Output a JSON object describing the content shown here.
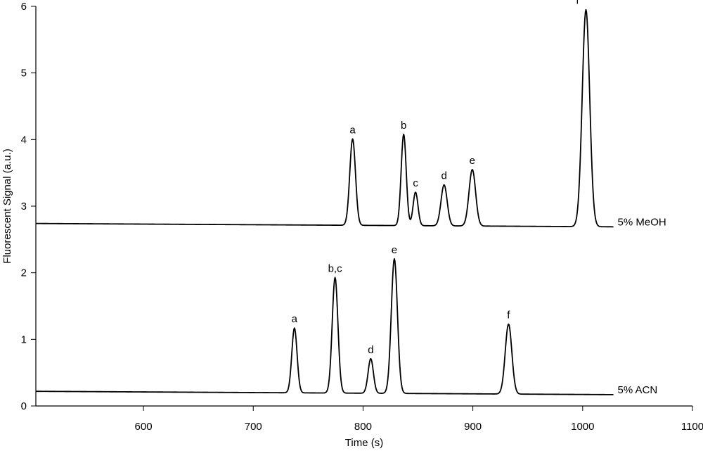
{
  "chart_data": {
    "type": "line",
    "xlabel": "Time (s)",
    "ylabel": "Fluorescent Signal (a.u.)",
    "xlim": [
      502,
      1100
    ],
    "ylim": [
      0,
      6
    ],
    "xticks": [
      600,
      700,
      800,
      900,
      1000,
      1100
    ],
    "yticks": [
      0,
      1,
      2,
      3,
      4,
      5,
      6
    ],
    "grid": false,
    "series": [
      {
        "name": "5% MeOH",
        "x_range": [
          502,
          1028
        ],
        "baseline_start": 2.74,
        "baseline_end": 2.69,
        "peaks": [
          {
            "label": "a",
            "x": 790.5,
            "y": 4.01,
            "width": 2.6
          },
          {
            "label": "b",
            "x": 837.0,
            "y": 4.08,
            "width": 2.3
          },
          {
            "label": "c",
            "x": 847.8,
            "y": 3.21,
            "width": 2.2
          },
          {
            "label": "d",
            "x": 873.8,
            "y": 3.32,
            "width": 2.8
          },
          {
            "label": "e",
            "x": 899.5,
            "y": 3.55,
            "width": 3.0
          },
          {
            "label": "f",
            "x": 1003.0,
            "y": 5.95,
            "width": 3.4
          }
        ]
      },
      {
        "name": "5% ACN",
        "x_range": [
          502,
          1028
        ],
        "baseline_start": 0.22,
        "baseline_end": 0.17,
        "peaks": [
          {
            "label": "a",
            "x": 737.5,
            "y": 1.17,
            "width": 2.4
          },
          {
            "label": "b,c",
            "x": 774.5,
            "y": 1.93,
            "width": 2.6
          },
          {
            "label": "d",
            "x": 807.0,
            "y": 0.71,
            "width": 2.4
          },
          {
            "label": "e",
            "x": 828.5,
            "y": 2.21,
            "width": 2.8
          },
          {
            "label": "f",
            "x": 932.5,
            "y": 1.23,
            "width": 3.0
          }
        ]
      }
    ]
  }
}
